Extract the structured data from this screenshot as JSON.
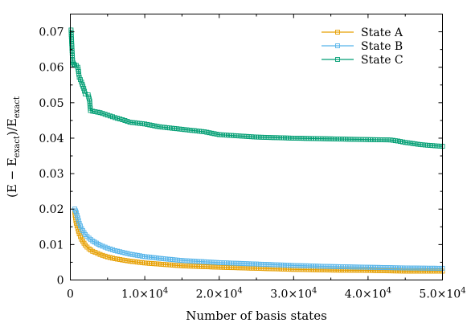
{
  "chart_data": {
    "type": "line",
    "title": "",
    "xlabel": "Number of basis states",
    "ylabel": "(E − E_exact)/E_exact",
    "ylabel_parts": {
      "open": "(E − E",
      "sub1": "exact",
      "mid": ")/E",
      "sub2": "exact"
    },
    "xlim": [
      0,
      50000
    ],
    "ylim": [
      0,
      0.075
    ],
    "x_ticks": [
      {
        "value": 0,
        "label": "0"
      },
      {
        "value": 10000,
        "label": "1.0×10",
        "exp": "4"
      },
      {
        "value": 20000,
        "label": "2.0×10",
        "exp": "4"
      },
      {
        "value": 30000,
        "label": "3.0×10",
        "exp": "4"
      },
      {
        "value": 40000,
        "label": "4.0×10",
        "exp": "4"
      },
      {
        "value": 50000,
        "label": "5.0×10",
        "exp": "4"
      }
    ],
    "y_ticks": [
      {
        "value": 0,
        "label": "0"
      },
      {
        "value": 0.01,
        "label": "0.01"
      },
      {
        "value": 0.02,
        "label": "0.02"
      },
      {
        "value": 0.03,
        "label": "0.03"
      },
      {
        "value": 0.04,
        "label": "0.04"
      },
      {
        "value": 0.05,
        "label": "0.05"
      },
      {
        "value": 0.06,
        "label": "0.06"
      },
      {
        "value": 0.07,
        "label": "0.07"
      }
    ],
    "legend_position": "top-right",
    "marker": "open-square",
    "series": [
      {
        "name": "State A",
        "color": "#E69F00",
        "x": [
          600,
          800,
          1000,
          1200,
          1500,
          2000,
          2500,
          3000,
          4000,
          5000,
          6000,
          8000,
          10000,
          12500,
          15000,
          20000,
          25000,
          30000,
          35000,
          40000,
          45000,
          50000
        ],
        "y": [
          0.019,
          0.016,
          0.0145,
          0.013,
          0.0115,
          0.0098,
          0.0088,
          0.0081,
          0.0072,
          0.0065,
          0.006,
          0.0053,
          0.0048,
          0.0044,
          0.004,
          0.0036,
          0.0033,
          0.003,
          0.0028,
          0.0027,
          0.0025,
          0.0025
        ]
      },
      {
        "name": "State B",
        "color": "#56B4E9",
        "x": [
          600,
          800,
          1000,
          1200,
          1500,
          2000,
          2500,
          3000,
          4000,
          5000,
          6000,
          8000,
          10000,
          12500,
          15000,
          20000,
          25000,
          30000,
          35000,
          40000,
          45000,
          50000
        ],
        "y": [
          0.02,
          0.019,
          0.0175,
          0.016,
          0.0145,
          0.0128,
          0.0118,
          0.011,
          0.0098,
          0.009,
          0.0083,
          0.0073,
          0.0066,
          0.006,
          0.0055,
          0.0049,
          0.0045,
          0.0041,
          0.0038,
          0.0036,
          0.0034,
          0.0033
        ]
      },
      {
        "name": "State C",
        "color": "#009E73",
        "x": [
          100,
          200,
          300,
          400,
          500,
          600,
          800,
          1000,
          1100,
          1200,
          1500,
          1800,
          2000,
          2400,
          2600,
          2700,
          3000,
          4000,
          5000,
          6000,
          7000,
          8000,
          10000,
          12000,
          15000,
          18000,
          20000,
          25000,
          30000,
          35000,
          40000,
          43000,
          44000,
          45000,
          46000,
          47000,
          48000,
          50000
        ],
        "y": [
          0.0705,
          0.066,
          0.062,
          0.0612,
          0.0608,
          0.0606,
          0.0605,
          0.06,
          0.0588,
          0.0572,
          0.0558,
          0.054,
          0.0525,
          0.0522,
          0.0505,
          0.0478,
          0.0476,
          0.0472,
          0.0465,
          0.0458,
          0.0452,
          0.0445,
          0.044,
          0.0432,
          0.0425,
          0.0418,
          0.041,
          0.0403,
          0.04,
          0.0398,
          0.0396,
          0.0395,
          0.0392,
          0.0388,
          0.0385,
          0.0382,
          0.038,
          0.0377
        ]
      }
    ]
  }
}
